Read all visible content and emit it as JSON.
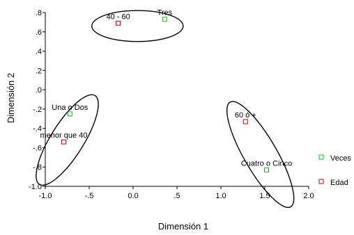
{
  "chart_data": {
    "type": "scatter",
    "xlabel": "Dimensión 1",
    "ylabel": "Dimensión 2",
    "xlim": [
      -1.0,
      2.0
    ],
    "ylim": [
      -1.0,
      0.8
    ],
    "xticks": [
      "-1.0",
      "-.5",
      "0.0",
      ".5",
      "1.0",
      "1.5",
      "2.0"
    ],
    "yticks": [
      ".8",
      ".6",
      ".4",
      ".2",
      ".0",
      "-.2",
      "-.4",
      "-.6",
      "-.8",
      "-1.0"
    ],
    "series": [
      {
        "name": "Veces",
        "color": "#00cc00",
        "marker": "square-outline",
        "points": [
          {
            "label": "Tres",
            "x": 0.36,
            "y": 0.73
          },
          {
            "label": "Una o Dos",
            "x": -0.72,
            "y": -0.25
          },
          {
            "label": "Cuatro o Cinco",
            "x": 1.52,
            "y": -0.83
          }
        ]
      },
      {
        "name": "Edad",
        "color": "#cc0000",
        "marker": "square-outline",
        "points": [
          {
            "label": "40 - 60",
            "x": -0.17,
            "y": 0.69
          },
          {
            "label": "menor que 40",
            "x": -0.79,
            "y": -0.54
          },
          {
            "label": "60 ó +",
            "x": 1.28,
            "y": -0.33
          }
        ]
      }
    ],
    "grid": false,
    "legend": "right"
  }
}
